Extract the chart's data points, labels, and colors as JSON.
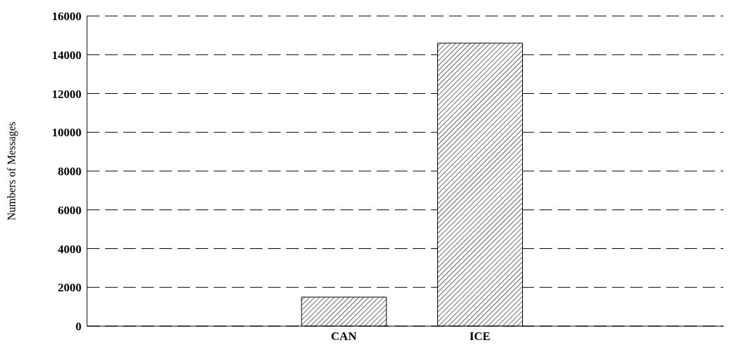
{
  "chart_data": {
    "type": "bar",
    "ylabel": "Numbers of Messages",
    "categories": [
      "CAN",
      "ICE"
    ],
    "values": [
      1500,
      14600
    ],
    "color": "#000000",
    "ylim": [
      0,
      16000
    ],
    "yticks": [
      0,
      2000,
      4000,
      6000,
      8000,
      10000,
      12000,
      14000,
      16000
    ],
    "grid": "y"
  }
}
